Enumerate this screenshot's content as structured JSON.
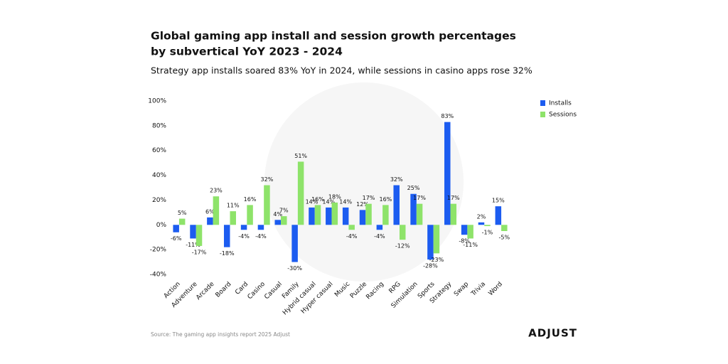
{
  "chart_data": {
    "type": "bar",
    "title": [
      "Global gaming app install and session growth percentages",
      "by subvertical YoY 2023 - 2024"
    ],
    "subtitle": "Strategy app installs soared 83% YoY in 2024, while sessions in casino apps rose 32%",
    "source": "Source: The gaming app insights report 2025 Adjust",
    "logo": "ADJUST",
    "legend": "right",
    "categories": [
      "Action",
      "Adventure",
      "Arcade",
      "Board",
      "Card",
      "Casino",
      "Casual",
      "Family",
      "Hybrid casual",
      "Hyper casual",
      "Music",
      "Puzzle",
      "Racing",
      "RPG",
      "Simulation",
      "Sports",
      "Strategy",
      "Swap",
      "Trivia",
      "Word"
    ],
    "series": [
      {
        "name": "Installs",
        "color": "#1c5cf0",
        "values": [
          -6,
          -11,
          6,
          -18,
          -4,
          -4,
          4,
          -30,
          14,
          14,
          14,
          12,
          -4,
          32,
          25,
          -28,
          83,
          -8,
          2,
          15
        ],
        "value_labels": [
          "-6%",
          "-11%",
          "6%",
          "-18%",
          "-4%",
          "-4%",
          "4%",
          "-30%",
          "14%",
          "14%",
          "14%",
          "12%",
          "-4%",
          "32%",
          "25%",
          "-28%",
          "83%",
          "-8%",
          "2%",
          "15%"
        ]
      },
      {
        "name": "Sessions",
        "color": "#8ee36a",
        "values": [
          5,
          -17,
          23,
          11,
          16,
          32,
          7,
          51,
          16,
          18,
          -4,
          17,
          16,
          -12,
          17,
          -23,
          17,
          -11,
          -1,
          -5
        ],
        "value_labels": [
          "5%",
          "-17%",
          "23%",
          "11%",
          "16%",
          "32%",
          "7%",
          "51%",
          "16%",
          "18%",
          "-4%",
          "17%",
          "16%",
          "-12%",
          "17%",
          "-23%",
          "17%",
          "-11%",
          "-1%",
          "-5%"
        ]
      }
    ],
    "ylim": [
      -40,
      100
    ],
    "yticks": [
      {
        "value": -40,
        "label": "-40%"
      },
      {
        "value": -20,
        "label": "-20%"
      },
      {
        "value": 0,
        "label": "0%"
      },
      {
        "value": 20,
        "label": "20%"
      },
      {
        "value": 40,
        "label": "40%"
      },
      {
        "value": 60,
        "label": "60%"
      },
      {
        "value": 80,
        "label": "80%"
      },
      {
        "value": 100,
        "label": "100%"
      }
    ]
  }
}
